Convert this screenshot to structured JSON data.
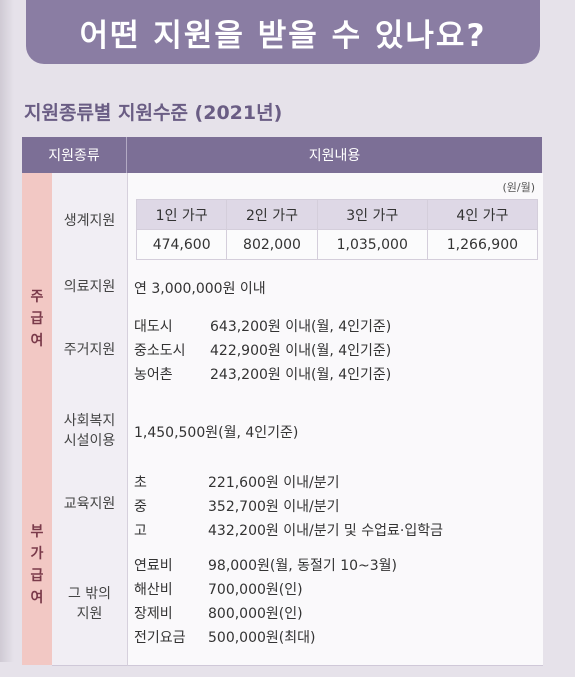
{
  "header": {
    "title": "어떤 지원을 받을 수 있나요?"
  },
  "section": {
    "title": "지원종류별 지원수준 (2021년)"
  },
  "table": {
    "col_type": "지원종류",
    "col_content": "지원내용",
    "groups": [
      {
        "name": "주급여",
        "chars": [
          "주",
          "급",
          "여"
        ]
      },
      {
        "name": "부가급여",
        "chars": [
          "부",
          "가",
          "급",
          "여"
        ]
      }
    ],
    "living": {
      "label": "생계지원",
      "unit": "(원/월)",
      "headers": [
        "1인 가구",
        "2인 가구",
        "3인 가구",
        "4인 가구"
      ],
      "values": [
        "474,600",
        "802,000",
        "1,035,000",
        "1,266,900"
      ]
    },
    "medical": {
      "label": "의료지원",
      "text": "연 3,000,000원 이내"
    },
    "housing": {
      "label": "주거지원",
      "items": [
        {
          "name": "대도시",
          "value": "643,200원 이내(월, 4인기준)"
        },
        {
          "name": "중소도시",
          "value": "422,900원 이내(월, 4인기준)"
        },
        {
          "name": "농어촌",
          "value": "243,200원 이내(월, 4인기준)"
        }
      ]
    },
    "welfare": {
      "label_line1": "사회복지",
      "label_line2": "시설이용",
      "text": "1,450,500원(월, 4인기준)"
    },
    "education": {
      "label": "교육지원",
      "items": [
        {
          "name": "초",
          "value": "221,600원 이내/분기"
        },
        {
          "name": "중",
          "value": "352,700원 이내/분기"
        },
        {
          "name": "고",
          "value": "432,200원 이내/분기 및 수업료·입학금"
        }
      ]
    },
    "other": {
      "label_line1": "그 밖의",
      "label_line2": "지원",
      "items": [
        {
          "name": "연료비",
          "value": "98,000원(월, 동절기 10~3월)"
        },
        {
          "name": "해산비",
          "value": "700,000원(인)"
        },
        {
          "name": "장제비",
          "value": "800,000원(인)"
        },
        {
          "name": "전기요금",
          "value": "500,000원(최대)"
        }
      ]
    }
  }
}
